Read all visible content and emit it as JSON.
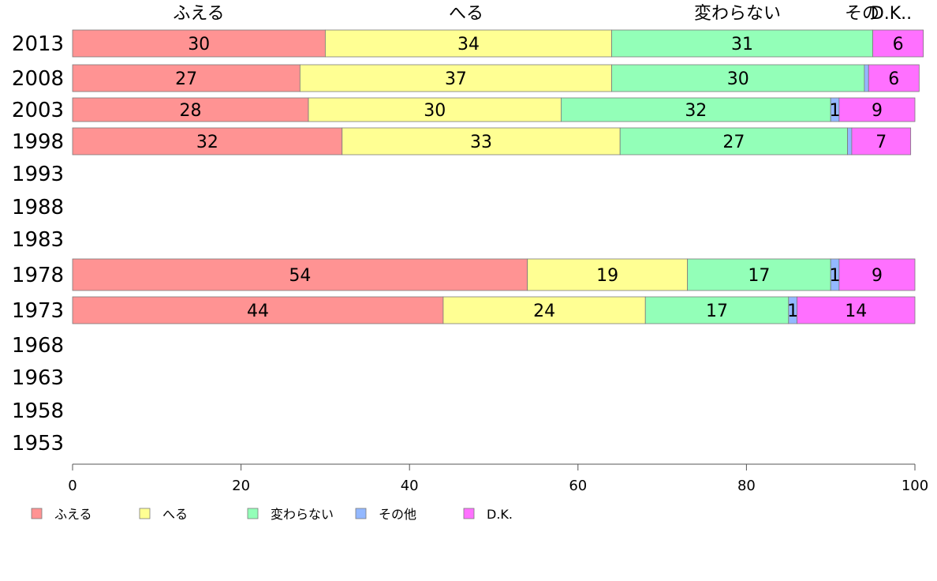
{
  "chart_data": {
    "type": "bar",
    "orientation": "horizontal-stacked-100",
    "categories": [
      "2013",
      "2008",
      "2003",
      "1998",
      "1993",
      "1988",
      "1983",
      "1978",
      "1973",
      "1968",
      "1963",
      "1958",
      "1953"
    ],
    "series": [
      {
        "name": "ふえる",
        "color": "#ff9393",
        "values": [
          30,
          27,
          28,
          32,
          null,
          null,
          null,
          54,
          44,
          null,
          null,
          null,
          null
        ]
      },
      {
        "name": "へる",
        "color": "#ffff93",
        "values": [
          34,
          37,
          30,
          33,
          null,
          null,
          null,
          19,
          24,
          null,
          null,
          null,
          null
        ]
      },
      {
        "name": "変わらない",
        "color": "#93ffb8",
        "values": [
          31,
          30,
          32,
          27,
          null,
          null,
          null,
          17,
          17,
          null,
          null,
          null,
          null
        ]
      },
      {
        "name": "その他",
        "color": "#93b8ff",
        "values": [
          0,
          0.5,
          1,
          0.5,
          null,
          null,
          null,
          1,
          1,
          null,
          null,
          null,
          null
        ]
      },
      {
        "name": "D.K.",
        "color": "#ff70ff",
        "values": [
          6,
          6,
          9,
          7,
          null,
          null,
          null,
          9,
          14,
          null,
          null,
          null,
          null
        ]
      }
    ],
    "data_labels": [
      [
        "30",
        "34",
        "31",
        "",
        "6"
      ],
      [
        "27",
        "37",
        "30",
        "",
        "6"
      ],
      [
        "28",
        "30",
        "32",
        "1",
        "9"
      ],
      [
        "32",
        "33",
        "27",
        "",
        "7"
      ],
      null,
      null,
      null,
      [
        "54",
        "19",
        "17",
        "1",
        "9"
      ],
      [
        "44",
        "24",
        "17",
        "1",
        "14"
      ],
      null,
      null,
      null,
      null
    ],
    "top_labels": [
      "ふえる",
      "へる",
      "変わらない",
      "その",
      "D.K.."
    ],
    "x_ticks": [
      "0",
      "20",
      "40",
      "60",
      "80",
      "100"
    ],
    "xlim": [
      0,
      100
    ],
    "legend_position": "bottom-left",
    "grid": false
  }
}
